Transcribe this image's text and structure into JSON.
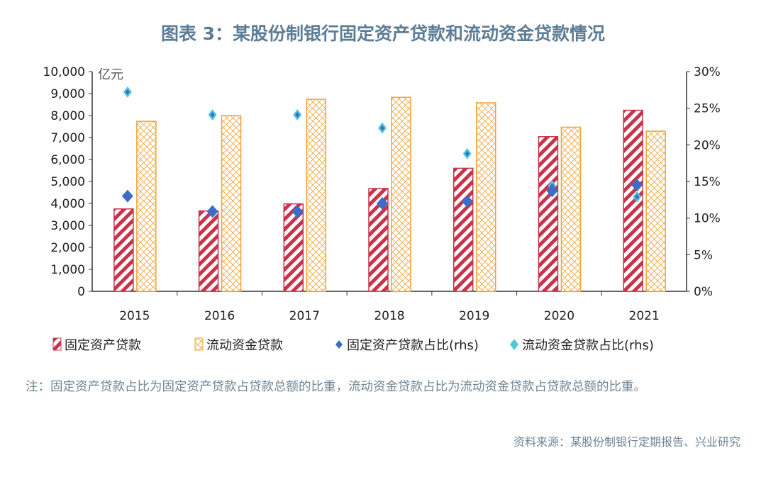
{
  "title": "图表 3：某股份制银行固定资产贷款和流动资金贷款情况",
  "note": "注：固定资产贷款占比为固定资产贷款占贷款总额的比重，流动资金贷款占比为流动资金贷款占贷款总额的比重。",
  "source": "资料来源：某股份制银行定期报告、兴业研究",
  "chart_data": {
    "type": "bar",
    "unit_label": "亿元",
    "categories": [
      "2015",
      "2016",
      "2017",
      "2018",
      "2019",
      "2020",
      "2021"
    ],
    "ylim": [
      0,
      10000
    ],
    "y_ticks": [
      "0",
      "1,000",
      "2,000",
      "3,000",
      "4,000",
      "5,000",
      "6,000",
      "7,000",
      "8,000",
      "9,000",
      "10,000"
    ],
    "y2lim": [
      0,
      30
    ],
    "y2_ticks": [
      "0%",
      "5%",
      "10%",
      "15%",
      "20%",
      "25%",
      "30%"
    ],
    "legend_position": "bottom",
    "grid": false,
    "series": [
      {
        "name": "固定资产贷款",
        "kind": "bar",
        "axis": "left",
        "color": "#c8334a",
        "values": [
          3750,
          3660,
          3980,
          4680,
          5600,
          7040,
          8240
        ]
      },
      {
        "name": "流动资金贷款",
        "kind": "bar",
        "axis": "left",
        "color": "#f0a43a",
        "values": [
          7740,
          8000,
          8740,
          8830,
          8580,
          7470,
          7290
        ]
      },
      {
        "name": "固定资产贷款占比(rhs)",
        "kind": "marker",
        "axis": "right",
        "color": "#3a6cc8",
        "values": [
          13.0,
          10.9,
          10.9,
          12.0,
          12.3,
          13.7,
          14.5
        ]
      },
      {
        "name": "流动资金贷款占比(rhs)",
        "kind": "marker",
        "axis": "right",
        "color": "#4fc8d8",
        "values": [
          27.2,
          24.1,
          24.1,
          22.3,
          18.8,
          14.4,
          12.9
        ]
      }
    ]
  }
}
